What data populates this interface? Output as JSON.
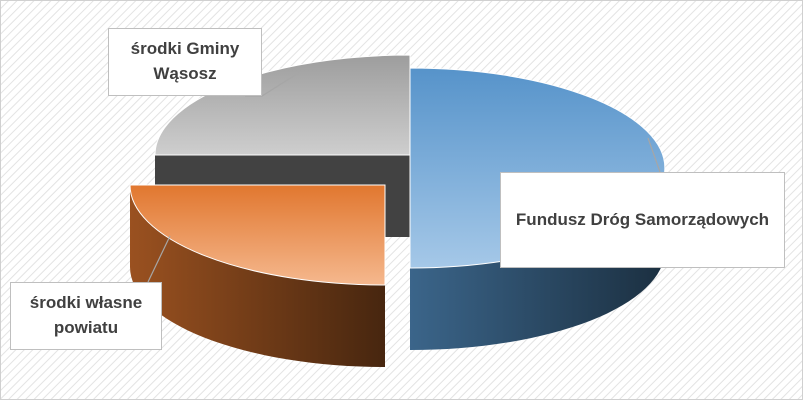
{
  "chart_data": {
    "type": "pie3d",
    "categories": [
      "Fundusz Dróg Samorządowych",
      "środki własne powiatu",
      "środki Gminy Wąsosz"
    ],
    "values": [
      50,
      25,
      25
    ],
    "colors": [
      "#5b9bd5",
      "#ed7d31",
      "#a5a5a5"
    ]
  }
}
